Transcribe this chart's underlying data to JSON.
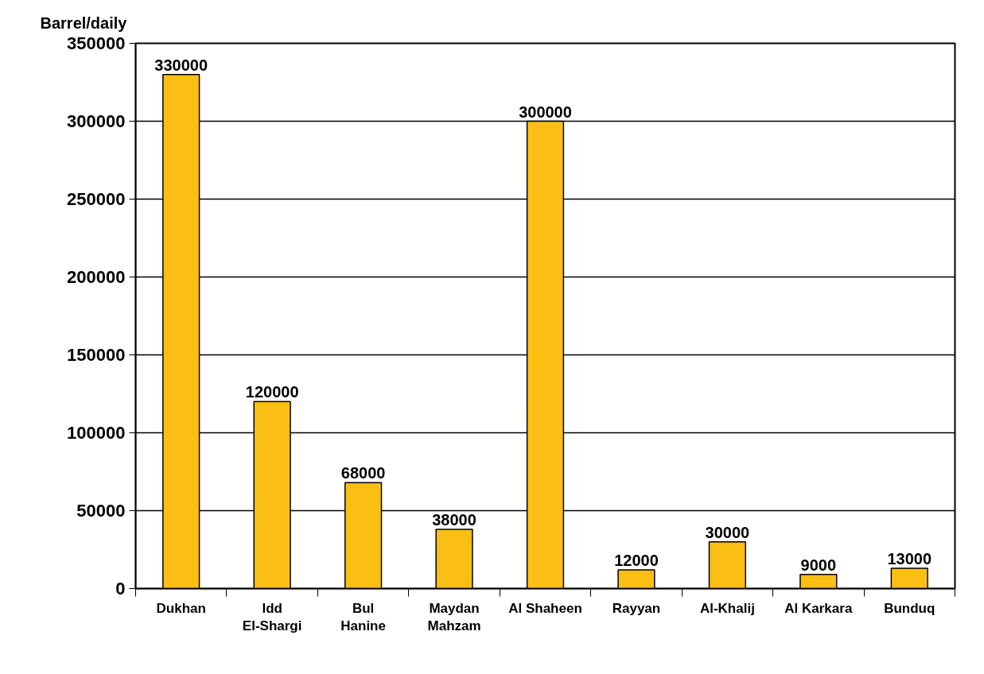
{
  "chart_data": {
    "type": "bar",
    "ylabel": "Barrel/daily",
    "categories": [
      "Dukhan",
      "Idd\nEl-Shargi",
      "Bul\nHanine",
      "Maydan\nMahzam",
      "Al Shaheen",
      "Rayyan",
      "Al-Khalij",
      "Al Karkara",
      "Bunduq"
    ],
    "values": [
      330000,
      120000,
      68000,
      38000,
      300000,
      12000,
      30000,
      9000,
      13000
    ],
    "color": "#fbbf14",
    "ylim": [
      0,
      350000
    ],
    "yticks": [
      0,
      50000,
      100000,
      150000,
      200000,
      250000,
      300000,
      350000
    ],
    "grid": "y",
    "data_labels": true
  }
}
